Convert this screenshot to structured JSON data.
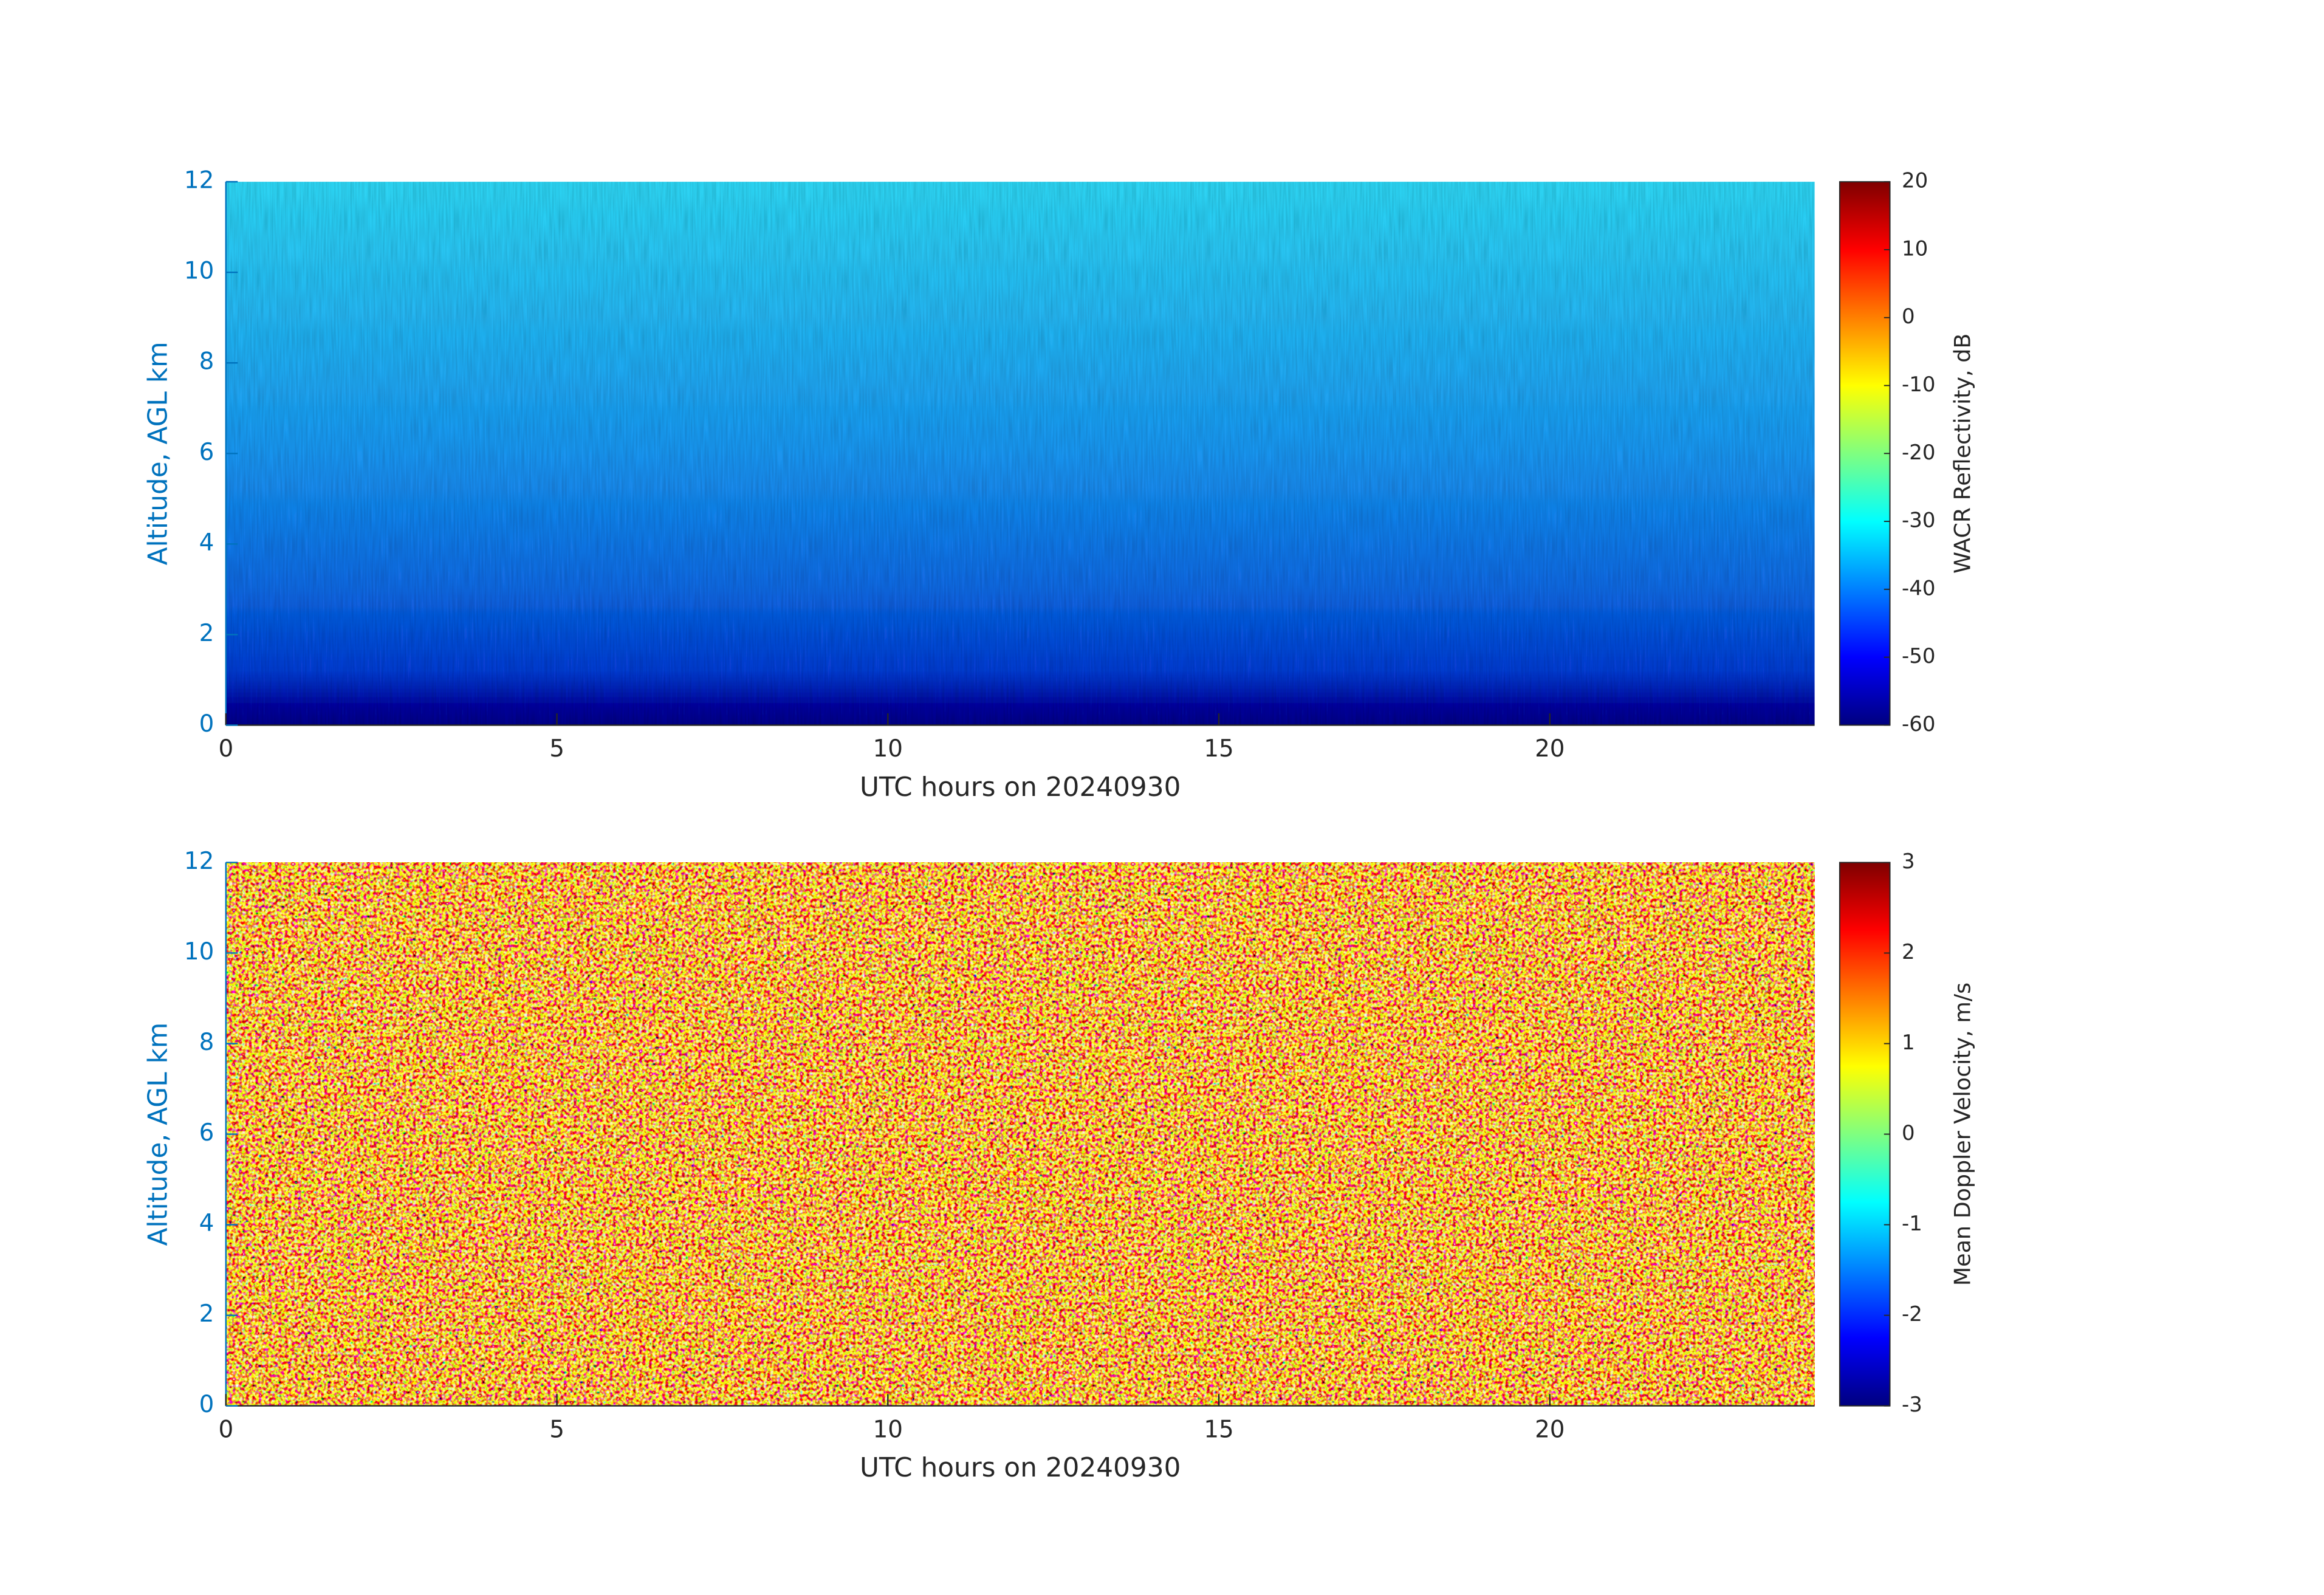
{
  "chart_data": [
    {
      "type": "heatmap",
      "xlabel": "UTC hours on 20240930",
      "ylabel": "Altitude, AGL km",
      "xlim": [
        0,
        24
      ],
      "xticks": [
        0,
        5,
        10,
        15,
        20
      ],
      "ylim": [
        0,
        12
      ],
      "yticks": [
        0,
        2,
        4,
        6,
        8,
        10,
        12
      ],
      "colorbar_label": "WACR Reflectivity, dB",
      "clim": [
        -60,
        20
      ],
      "cticks": [
        -60,
        -50,
        -40,
        -30,
        -20,
        -10,
        0,
        10,
        20
      ],
      "colormap": "jet"
    },
    {
      "type": "heatmap",
      "xlabel": "UTC hours on 20240930",
      "ylabel": "Altitude, AGL km",
      "xlim": [
        0,
        24
      ],
      "xticks": [
        0,
        5,
        10,
        15,
        20
      ],
      "ylim": [
        0,
        12
      ],
      "yticks": [
        0,
        2,
        4,
        6,
        8,
        10,
        12
      ],
      "colorbar_label": "Mean Doppler Velocity, m/s",
      "clim": [
        -3,
        3
      ],
      "cticks": [
        -3,
        -2,
        -1,
        0,
        1,
        2,
        3
      ],
      "colormap": "jet"
    }
  ]
}
